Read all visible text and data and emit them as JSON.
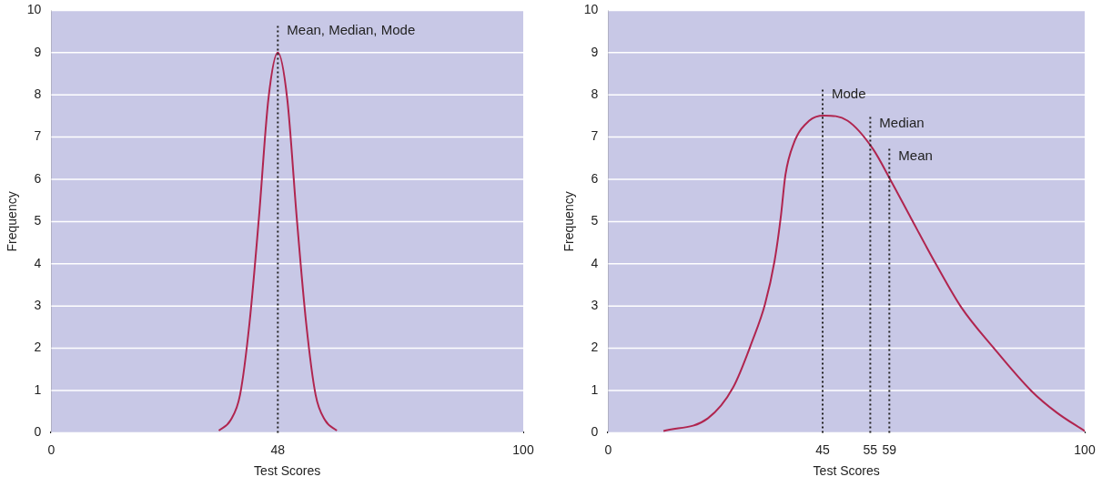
{
  "chart_data": [
    {
      "type": "line",
      "xlabel": "Test Scores",
      "ylabel": "Frequency",
      "xlim": [
        0,
        100
      ],
      "xticks": [
        0,
        48,
        100
      ],
      "ylim": [
        0,
        10
      ],
      "yticks": [
        0,
        1,
        2,
        3,
        4,
        5,
        6,
        7,
        8,
        9,
        10
      ],
      "grid": "y",
      "legend": false,
      "marker": "none",
      "line_style": "solid",
      "series": [
        {
          "color": "#b0254f",
          "x": [
            35.5,
            38,
            40,
            42,
            44,
            46,
            48,
            50,
            52,
            54,
            56,
            58,
            60.5
          ],
          "values": [
            0.05,
            0.3,
            0.9,
            2.6,
            5.1,
            7.9,
            9,
            7.9,
            5.1,
            2.6,
            0.9,
            0.3,
            0.05
          ]
        }
      ],
      "ref_lines": [
        {
          "axis": "x",
          "value": 48,
          "label": "Mean, Median, Mode",
          "color": "#222222",
          "line_style": "dotted"
        }
      ]
    },
    {
      "type": "line",
      "xlabel": "Test Scores",
      "ylabel": "Frequency",
      "xlim": [
        0,
        100
      ],
      "xticks": [
        0,
        45,
        55,
        59,
        100
      ],
      "ylim": [
        0,
        10
      ],
      "yticks": [
        0,
        1,
        2,
        3,
        4,
        5,
        6,
        7,
        8,
        9,
        10
      ],
      "grid": "y",
      "legend": false,
      "marker": "none",
      "line_style": "solid",
      "series": [
        {
          "color": "#b0254f",
          "x": [
            11.6,
            20.9,
            26.2,
            30.2,
            32.9,
            34.9,
            36.2,
            37.2,
            38.9,
            42.2,
            45.3,
            50.2,
            55.5,
            59.5,
            63.5,
            68.8,
            74.1,
            80.8,
            88.8,
            94.1,
            100
          ],
          "values": [
            0.04,
            0.34,
            1.07,
            2.16,
            3.04,
            4.06,
            5.09,
            6.11,
            6.84,
            7.39,
            7.51,
            7.39,
            6.73,
            5.93,
            5.09,
            3.99,
            2.97,
            2.02,
            0.99,
            0.48,
            0.04
          ]
        }
      ],
      "ref_lines": [
        {
          "axis": "x",
          "value": 45,
          "label": "Mode",
          "color": "#222222",
          "line_style": "dotted"
        },
        {
          "axis": "x",
          "value": 55,
          "label": "Median",
          "color": "#222222",
          "line_style": "dotted"
        },
        {
          "axis": "x",
          "value": 59,
          "label": "Mean",
          "color": "#222222",
          "line_style": "dotted"
        }
      ]
    }
  ]
}
